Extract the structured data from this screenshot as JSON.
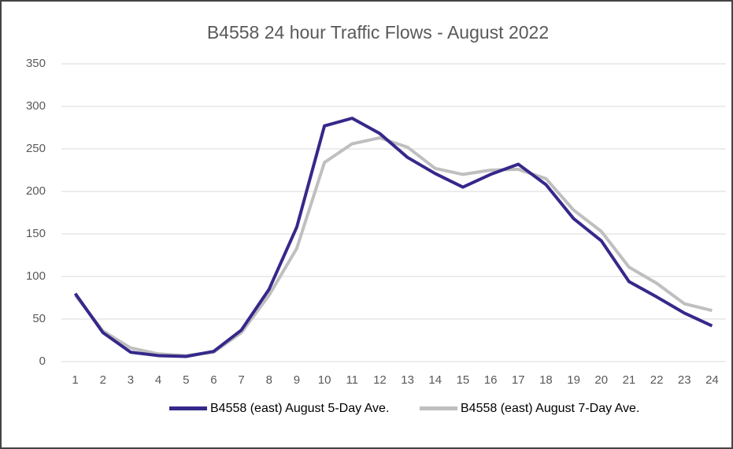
{
  "chart_data": {
    "type": "line",
    "title": "B4558 24 hour Traffic Flows - August 2022",
    "categories": [
      "1",
      "2",
      "3",
      "4",
      "5",
      "6",
      "7",
      "8",
      "9",
      "10",
      "11",
      "12",
      "13",
      "14",
      "15",
      "16",
      "17",
      "18",
      "19",
      "20",
      "21",
      "22",
      "23",
      "24"
    ],
    "series": [
      {
        "name": "B4558 (east) August 5-Day Ave.",
        "color": "#35288a",
        "values": [
          80,
          34,
          11,
          7,
          6,
          12,
          37,
          85,
          158,
          277,
          286,
          268,
          240,
          221,
          205,
          220,
          232,
          208,
          168,
          142,
          94,
          76,
          57,
          42
        ]
      },
      {
        "name": "B4558 (east) August 7-Day Ave.",
        "color": "#bfbfbf",
        "values": [
          78,
          36,
          16,
          9,
          7,
          11,
          34,
          78,
          133,
          234,
          256,
          263,
          252,
          227,
          220,
          225,
          226,
          215,
          178,
          153,
          111,
          92,
          68,
          60
        ]
      }
    ],
    "ylim": [
      0,
      350
    ],
    "yticks": [
      0,
      50,
      100,
      150,
      200,
      250,
      300,
      350
    ],
    "grid": true,
    "legend": "bottom"
  }
}
